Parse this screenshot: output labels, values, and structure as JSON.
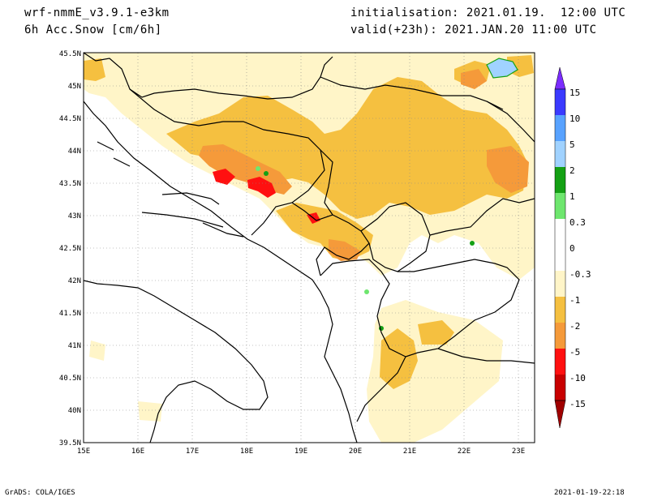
{
  "header": {
    "model": "wrf-nmmE_v3.9.1-e3km",
    "variable": "6h Acc.Snow [cm/6h]",
    "init": "initialisation: 2021.01.19.  12:00 UTC",
    "valid": "valid(+23h): 2021.JAN.20 11:00 UTC"
  },
  "footer": {
    "left": "GrADS: COLA/IGES",
    "right": "2021-01-19-22:18"
  },
  "map": {
    "lon_range": [
      15,
      23.3
    ],
    "lat_range": [
      39.5,
      45.5
    ],
    "lon_ticks": [
      "15E",
      "16E",
      "17E",
      "18E",
      "19E",
      "20E",
      "21E",
      "22E",
      "23E"
    ],
    "lat_ticks": [
      "39.5N",
      "40N",
      "40.5N",
      "41N",
      "41.5N",
      "42N",
      "42.5N",
      "43N",
      "43.5N",
      "44N",
      "44.5N",
      "45N",
      "45.5N"
    ],
    "grid": "dotted"
  },
  "colorbar": {
    "labels": [
      "15",
      "10",
      "5",
      "2",
      "1",
      "0.3",
      "0",
      "-0.3",
      "-1",
      "-2",
      "-5",
      "-10",
      "-15"
    ],
    "colors": [
      "#7b2cff",
      "#3a3aff",
      "#58a2ff",
      "#a0d2ff",
      "#14a014",
      "#6ee66e",
      "#ffffff",
      "#fff5c8",
      "#f5c040",
      "#f59a3a",
      "#ff1010",
      "#c80000",
      "#a00000"
    ]
  },
  "colors": {
    "light": "#fff5c8",
    "mid": "#f5c040",
    "orange": "#f59a3a",
    "red": "#ff1010",
    "green": "#6ee66e",
    "darkgreen": "#14a014",
    "blue": "#a0d2ff"
  }
}
